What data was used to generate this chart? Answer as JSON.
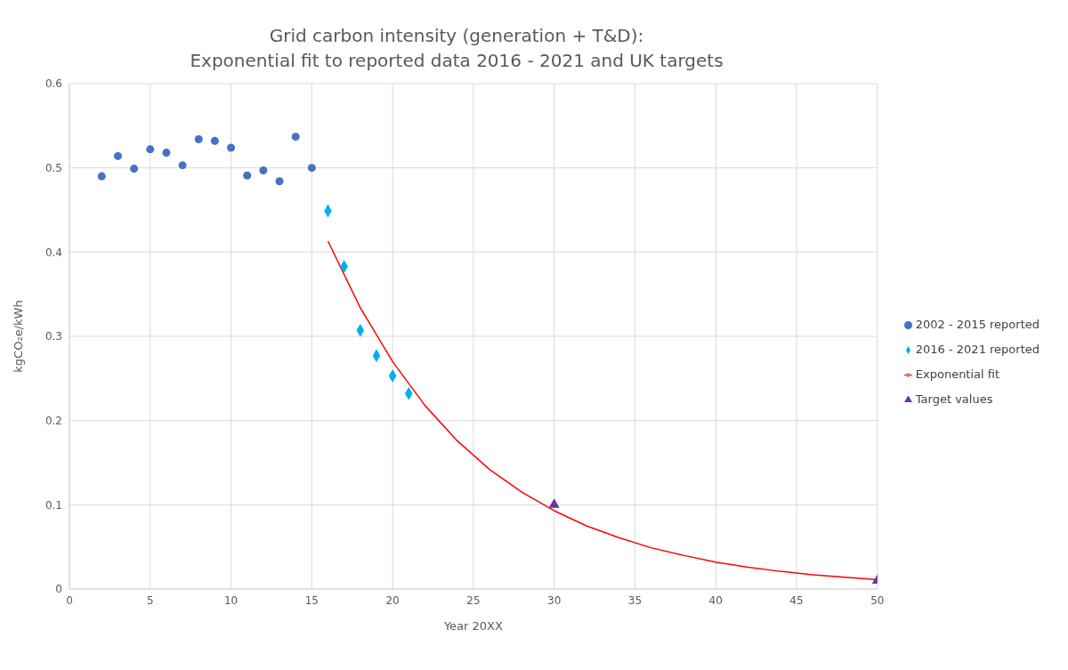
{
  "chart_data": {
    "type": "scatter",
    "title": "Grid carbon intensity (generation + T&D):\nExponential fit to reported data 2016 - 2021 and UK targets",
    "xlabel": "Year 20XX",
    "ylabel": "kgCO₂e/kWh",
    "xlim": [
      0,
      50
    ],
    "xticks": [
      0,
      5,
      10,
      15,
      20,
      25,
      30,
      35,
      40,
      45,
      50
    ],
    "ylim": [
      0,
      0.6
    ],
    "yticks": [
      0,
      0.1,
      0.2,
      0.3,
      0.4,
      0.5,
      0.6
    ],
    "grid": true,
    "legend": "right",
    "series": [
      {
        "name": "2016 - 2021 reported",
        "color": "#00b0f0",
        "marker": "diamond",
        "x": [
          16,
          17,
          18,
          19,
          20,
          21
        ],
        "values": [
          0.449,
          0.383,
          0.307,
          0.277,
          0.253,
          0.232
        ]
      },
      {
        "name": "2002 - 2015 reported",
        "color": "#4472c4",
        "marker": "circle",
        "x": [
          2,
          3,
          4,
          5,
          6,
          7,
          8,
          9,
          10,
          11,
          12,
          13,
          14,
          15
        ],
        "values": [
          0.49,
          0.514,
          0.499,
          0.522,
          0.518,
          0.503,
          0.534,
          0.532,
          0.524,
          0.491,
          0.497,
          0.484,
          0.537,
          0.5
        ]
      },
      {
        "name": "Target values",
        "color": "#7030a0",
        "marker": "triangle",
        "x": [
          30,
          50
        ],
        "values": [
          0.1,
          0.01
        ]
      },
      {
        "name": "Exponential fit",
        "type": "line",
        "color": "#ff0000",
        "marker": "none",
        "line_style": "solid",
        "x": [
          16,
          18,
          20,
          22,
          24,
          26,
          28,
          30,
          32,
          34,
          36,
          38,
          40,
          42,
          44,
          46,
          48,
          50
        ],
        "values": [
          0.413,
          0.334,
          0.27,
          0.218,
          0.176,
          0.142,
          0.115,
          0.093,
          0.075,
          0.061,
          0.049,
          0.04,
          0.032,
          0.026,
          0.021,
          0.017,
          0.014,
          0.011
        ]
      }
    ]
  }
}
